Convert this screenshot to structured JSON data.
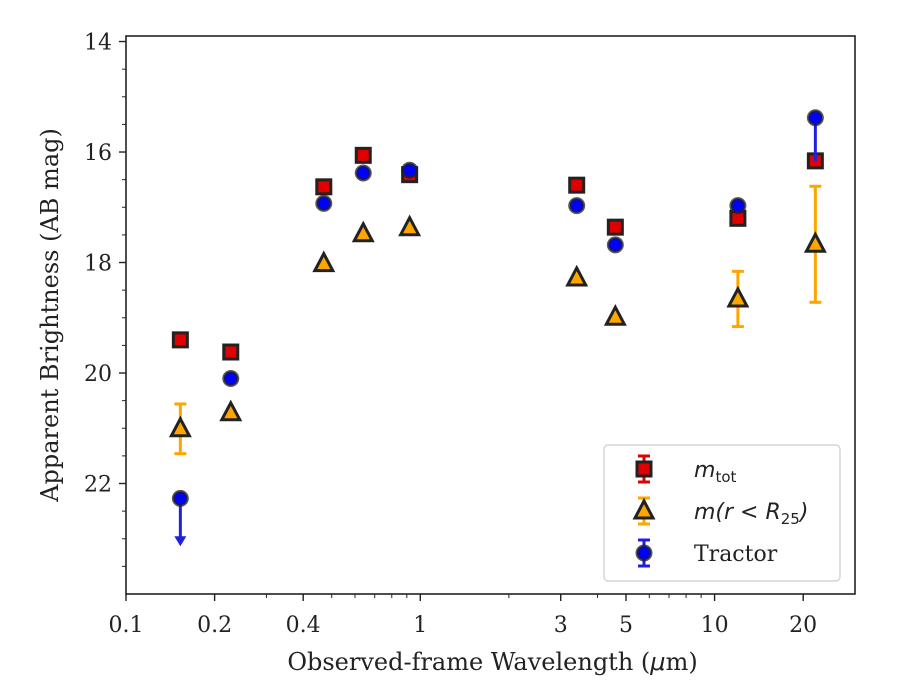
{
  "chart_data": {
    "type": "scatter",
    "xlabel_main": "Observed-frame Wavelength (",
    "xlabel_unit_mu": "μ",
    "xlabel_unit_rest": "m)",
    "ylabel": "Apparent Brightness (AB mag)",
    "xscale": "log",
    "xlim": [
      0.1,
      30
    ],
    "ylim": [
      24,
      13.9
    ],
    "y_inverted": true,
    "xticks": [
      {
        "value": 0.1,
        "label": "0.1"
      },
      {
        "value": 0.2,
        "label": "0.2"
      },
      {
        "value": 0.4,
        "label": "0.4"
      },
      {
        "value": 1,
        "label": "1"
      },
      {
        "value": 3,
        "label": "3"
      },
      {
        "value": 5,
        "label": "5"
      },
      {
        "value": 10,
        "label": "10"
      },
      {
        "value": 20,
        "label": "20"
      }
    ],
    "yticks": [
      {
        "value": 14,
        "label": "14"
      },
      {
        "value": 16,
        "label": "16"
      },
      {
        "value": 18,
        "label": "18"
      },
      {
        "value": 20,
        "label": "20"
      },
      {
        "value": 22,
        "label": "22"
      }
    ],
    "legend_position": "lower-right",
    "series": [
      {
        "name": "m_tot",
        "legend_main": "m",
        "legend_sub": "tot",
        "marker": "square",
        "face_color": "#e00000",
        "edge_color": "#222222",
        "err_color": "#e00000",
        "points": [
          {
            "x": 0.153,
            "y": 19.4,
            "yerr": 0.05
          },
          {
            "x": 0.227,
            "y": 19.62,
            "yerr": 0.05
          },
          {
            "x": 0.47,
            "y": 16.63,
            "yerr": 0.05
          },
          {
            "x": 0.64,
            "y": 16.06,
            "yerr": 0.05
          },
          {
            "x": 0.92,
            "y": 16.41,
            "yerr": 0.05
          },
          {
            "x": 3.4,
            "y": 16.6,
            "yerr": 0.05
          },
          {
            "x": 4.6,
            "y": 17.36,
            "yerr": 0.05
          },
          {
            "x": 12.0,
            "y": 17.2,
            "yerr": 0.05
          },
          {
            "x": 22.0,
            "y": 16.16,
            "yerr": 0.05
          }
        ]
      },
      {
        "name": "m(r<R_25)",
        "legend_main": "m(r < R",
        "legend_sub": "25",
        "legend_close": ")",
        "marker": "triangle",
        "face_color": "#ffa500",
        "edge_color": "#222222",
        "err_color": "#ffa500",
        "points": [
          {
            "x": 0.153,
            "y": 21.01,
            "yerr": 0.45
          },
          {
            "x": 0.227,
            "y": 20.72,
            "yerr": 0.05
          },
          {
            "x": 0.47,
            "y": 18.02,
            "yerr": 0.05
          },
          {
            "x": 0.64,
            "y": 17.48,
            "yerr": 0.05
          },
          {
            "x": 0.92,
            "y": 17.37,
            "yerr": 0.05
          },
          {
            "x": 3.4,
            "y": 18.28,
            "yerr": 0.05
          },
          {
            "x": 4.6,
            "y": 18.99,
            "yerr": 0.05
          },
          {
            "x": 12.0,
            "y": 18.66,
            "yerr": 0.5
          },
          {
            "x": 22.0,
            "y": 17.67,
            "yerr": 1.05
          }
        ]
      },
      {
        "name": "Tractor",
        "legend_main": "Tractor",
        "marker": "circle",
        "face_color": "#0000ff",
        "edge_color": "#222222",
        "err_color": "#2020e0",
        "points": [
          {
            "x": 0.153,
            "y": 22.27,
            "upper_limit": true,
            "arrow_to": 23.1
          },
          {
            "x": 0.227,
            "y": 20.1,
            "yerr": 0.05
          },
          {
            "x": 0.47,
            "y": 16.93,
            "yerr": 0.05
          },
          {
            "x": 0.64,
            "y": 16.38,
            "yerr": 0.05
          },
          {
            "x": 0.92,
            "y": 16.33,
            "yerr": 0.05
          },
          {
            "x": 3.4,
            "y": 16.97,
            "yerr": 0.05
          },
          {
            "x": 4.6,
            "y": 17.68,
            "yerr": 0.05
          },
          {
            "x": 12.0,
            "y": 16.97,
            "yerr": 0.05
          },
          {
            "x": 22.0,
            "y": 15.38,
            "yerr_minus": 0.0,
            "yerr_plus": 0.78
          }
        ]
      }
    ]
  }
}
